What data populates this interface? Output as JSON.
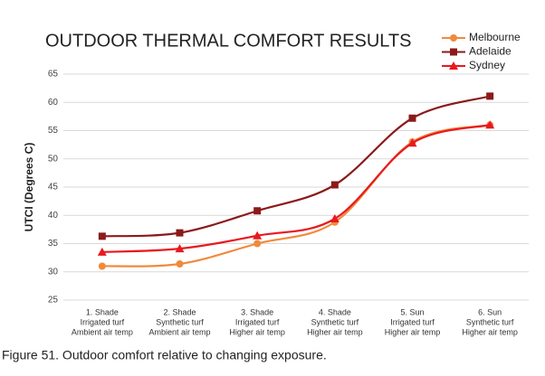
{
  "chart_data": {
    "type": "line",
    "title": "OUTDOOR THERMAL COMFORT RESULTS",
    "y_label": "UTCI (Degrees C)",
    "categories": [
      [
        "1. Shade",
        "Irrigated turf",
        "Ambient air temp"
      ],
      [
        "2. Shade",
        "Synthetic turf",
        "Ambient air temp"
      ],
      [
        "3. Shade",
        "Irrigated turf",
        "Higher air temp"
      ],
      [
        "4. Shade",
        "Synthetic turf",
        "Higher air temp"
      ],
      [
        "5. Sun",
        "Irrigated turf",
        "Higher air temp"
      ],
      [
        "6. Sun",
        "Synthetic turf",
        "Higher air temp"
      ]
    ],
    "series": [
      {
        "name": "Melbourne",
        "color": "#f08a3c",
        "marker": "circle",
        "values": [
          31,
          31.4,
          35,
          38.8,
          53,
          56
        ]
      },
      {
        "name": "Adelaide",
        "color": "#8b1a1a",
        "marker": "square",
        "values": [
          36.3,
          36.9,
          40.8,
          45.4,
          57.2,
          61.1
        ]
      },
      {
        "name": "Sydney",
        "color": "#e8191f",
        "marker": "triangle",
        "values": [
          33.5,
          34.1,
          36.4,
          39.4,
          52.8,
          56
        ]
      }
    ],
    "ylim": [
      25,
      65
    ],
    "yticks": [
      25,
      30,
      35,
      40,
      45,
      50,
      55,
      60,
      65
    ],
    "grid": true,
    "smooth": true,
    "legend": "top-right"
  },
  "caption": "Figure 51. Outdoor comfort relative to changing exposure."
}
